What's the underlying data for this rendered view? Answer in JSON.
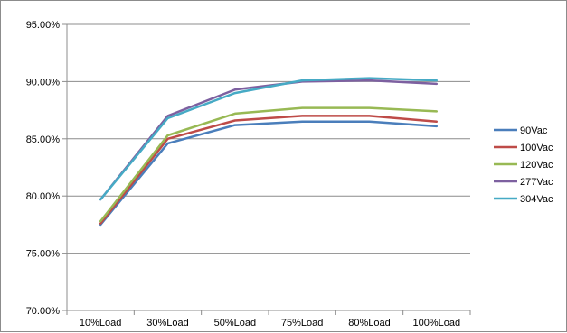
{
  "chart_data": {
    "type": "line",
    "categories": [
      "10%Load",
      "30%Load",
      "50%Load",
      "75%Load",
      "80%Load",
      "100%Load"
    ],
    "ylim": [
      0.7,
      0.95
    ],
    "yticks": [
      0.95,
      0.9,
      0.85,
      0.8,
      0.75,
      0.7
    ],
    "ytick_labels": [
      "95.00%",
      "90.00%",
      "85.00%",
      "80.00%",
      "75.00%",
      "70.00%"
    ],
    "grid": "horizontal",
    "legend_position": "right",
    "series": [
      {
        "name": "90Vac",
        "color": "#4a7ebb",
        "values": [
          0.775,
          0.846,
          0.862,
          0.865,
          0.865,
          0.861
        ]
      },
      {
        "name": "100Vac",
        "color": "#be4b48",
        "values": [
          0.776,
          0.85,
          0.866,
          0.87,
          0.87,
          0.865
        ]
      },
      {
        "name": "120Vac",
        "color": "#98b954",
        "values": [
          0.778,
          0.853,
          0.872,
          0.877,
          0.877,
          0.874
        ]
      },
      {
        "name": "277Vac",
        "color": "#7d60a0",
        "values": [
          0.797,
          0.87,
          0.893,
          0.9,
          0.901,
          0.898
        ]
      },
      {
        "name": "304Vac",
        "color": "#46aac5",
        "values": [
          0.797,
          0.868,
          0.89,
          0.901,
          0.903,
          0.901
        ]
      }
    ]
  }
}
